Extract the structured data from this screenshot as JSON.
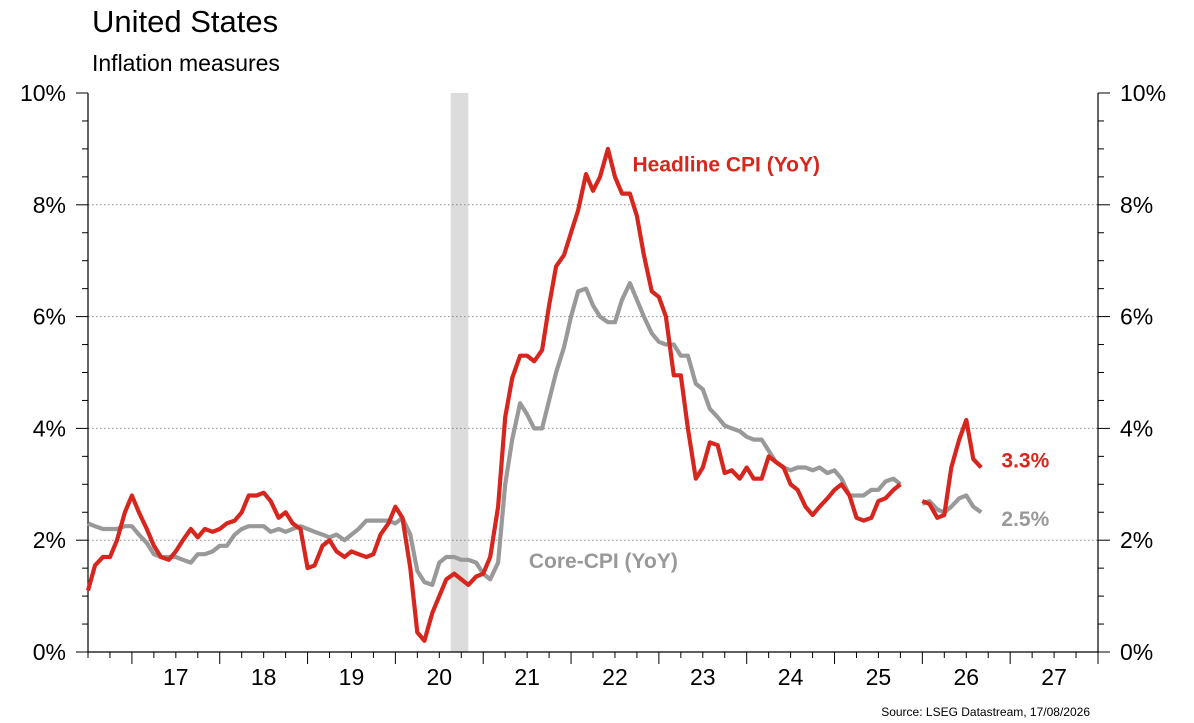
{
  "title": "United States",
  "subtitle": "Inflation measures",
  "source": "Source: LSEG Datastream, 17/08/2026",
  "chart_data": {
    "type": "line",
    "title": "United States",
    "subtitle": "Inflation measures",
    "xlabel": "",
    "ylabel": "",
    "y_ticks": [
      "0%",
      "2%",
      "4%",
      "6%",
      "8%",
      "10%"
    ],
    "ylim": [
      0,
      10
    ],
    "xlim": [
      2016.0,
      2027.5
    ],
    "x_ticks": [
      "17",
      "18",
      "19",
      "20",
      "21",
      "22",
      "23",
      "24",
      "25",
      "26",
      "27"
    ],
    "x_tick_values": [
      2017,
      2018,
      2019,
      2020,
      2021,
      2022,
      2023,
      2024,
      2025,
      2026,
      2027
    ],
    "grid": "horizontal dotted",
    "recession_shading": [
      2020.13,
      2020.33
    ],
    "annotations": [
      {
        "text": "Headline CPI (YoY)",
        "color": "#d7261e"
      },
      {
        "text": "Core-CPI (YoY)",
        "color": "#999999"
      },
      {
        "text": "3.3%",
        "color": "#d7261e"
      },
      {
        "text": "2.5%",
        "color": "#999999"
      }
    ],
    "series": [
      {
        "name": "Headline CPI (YoY)",
        "color": "#d7261e",
        "segments": [
          [
            [
              2016.0,
              1.1
            ],
            [
              2016.08,
              1.55
            ],
            [
              2016.17,
              1.7
            ],
            [
              2016.25,
              1.7
            ],
            [
              2016.33,
              2.0
            ],
            [
              2016.42,
              2.5
            ],
            [
              2016.5,
              2.8
            ],
            [
              2016.58,
              2.5
            ],
            [
              2016.67,
              2.2
            ],
            [
              2016.75,
              1.9
            ],
            [
              2016.83,
              1.7
            ],
            [
              2016.92,
              1.65
            ],
            [
              2017.0,
              1.8
            ],
            [
              2017.08,
              2.0
            ],
            [
              2017.17,
              2.2
            ],
            [
              2017.25,
              2.05
            ],
            [
              2017.33,
              2.2
            ],
            [
              2017.42,
              2.15
            ],
            [
              2017.5,
              2.2
            ],
            [
              2017.58,
              2.3
            ],
            [
              2017.67,
              2.35
            ],
            [
              2017.75,
              2.5
            ],
            [
              2017.83,
              2.8
            ],
            [
              2017.92,
              2.8
            ],
            [
              2018.0,
              2.85
            ],
            [
              2018.08,
              2.7
            ],
            [
              2018.17,
              2.4
            ],
            [
              2018.25,
              2.5
            ],
            [
              2018.33,
              2.3
            ],
            [
              2018.42,
              2.2
            ],
            [
              2018.5,
              1.5
            ],
            [
              2018.58,
              1.55
            ],
            [
              2018.67,
              1.9
            ],
            [
              2018.75,
              2.0
            ],
            [
              2018.83,
              1.8
            ],
            [
              2018.92,
              1.7
            ],
            [
              2019.0,
              1.8
            ],
            [
              2019.08,
              1.75
            ],
            [
              2019.17,
              1.7
            ],
            [
              2019.25,
              1.75
            ],
            [
              2019.33,
              2.1
            ],
            [
              2019.42,
              2.3
            ],
            [
              2019.5,
              2.6
            ],
            [
              2019.58,
              2.4
            ],
            [
              2019.67,
              1.5
            ],
            [
              2019.75,
              0.35
            ],
            [
              2019.83,
              0.2
            ],
            [
              2019.92,
              0.7
            ],
            [
              2020.0,
              1.0
            ],
            [
              2020.08,
              1.3
            ],
            [
              2020.17,
              1.4
            ],
            [
              2020.25,
              1.3
            ],
            [
              2020.33,
              1.2
            ],
            [
              2020.42,
              1.35
            ],
            [
              2020.5,
              1.4
            ],
            [
              2020.58,
              1.7
            ],
            [
              2020.67,
              2.6
            ],
            [
              2020.75,
              4.2
            ],
            [
              2020.83,
              4.9
            ],
            [
              2020.92,
              5.3
            ],
            [
              2021.0,
              5.3
            ],
            [
              2021.08,
              5.2
            ],
            [
              2021.17,
              5.4
            ],
            [
              2021.25,
              6.2
            ],
            [
              2021.33,
              6.9
            ],
            [
              2021.42,
              7.1
            ],
            [
              2021.5,
              7.5
            ],
            [
              2021.58,
              7.9
            ],
            [
              2021.67,
              8.55
            ],
            [
              2021.75,
              8.25
            ],
            [
              2021.83,
              8.5
            ],
            [
              2021.92,
              9.0
            ],
            [
              2022.0,
              8.5
            ],
            [
              2022.08,
              8.2
            ],
            [
              2022.17,
              8.2
            ],
            [
              2022.25,
              7.8
            ],
            [
              2022.33,
              7.1
            ],
            [
              2022.42,
              6.45
            ],
            [
              2022.5,
              6.35
            ],
            [
              2022.58,
              6.0
            ],
            [
              2022.67,
              4.95
            ],
            [
              2022.75,
              4.95
            ],
            [
              2022.83,
              4.0
            ],
            [
              2022.92,
              3.1
            ],
            [
              2023.0,
              3.3
            ],
            [
              2023.08,
              3.75
            ],
            [
              2023.17,
              3.7
            ],
            [
              2023.25,
              3.2
            ],
            [
              2023.33,
              3.25
            ],
            [
              2023.42,
              3.1
            ],
            [
              2023.5,
              3.3
            ],
            [
              2023.58,
              3.1
            ],
            [
              2023.67,
              3.1
            ],
            [
              2023.75,
              3.5
            ],
            [
              2023.83,
              3.4
            ],
            [
              2023.92,
              3.3
            ],
            [
              2024.0,
              3.0
            ],
            [
              2024.08,
              2.9
            ],
            [
              2024.17,
              2.6
            ],
            [
              2024.25,
              2.45
            ],
            [
              2024.33,
              2.6
            ],
            [
              2024.42,
              2.75
            ],
            [
              2024.5,
              2.9
            ],
            [
              2024.58,
              3.0
            ],
            [
              2024.67,
              2.8
            ],
            [
              2024.75,
              2.4
            ],
            [
              2024.83,
              2.35
            ],
            [
              2024.92,
              2.4
            ],
            [
              2025.0,
              2.7
            ],
            [
              2025.08,
              2.75
            ],
            [
              2025.17,
              2.9
            ],
            [
              2025.25,
              3.0
            ]
          ],
          [
            [
              2025.5,
              2.7
            ],
            [
              2025.58,
              2.65
            ],
            [
              2025.67,
              2.4
            ],
            [
              2025.75,
              2.45
            ],
            [
              2025.83,
              3.3
            ],
            [
              2025.92,
              3.8
            ],
            [
              2026.0,
              4.15
            ],
            [
              2026.08,
              3.45
            ],
            [
              2026.17,
              3.3
            ]
          ]
        ]
      },
      {
        "name": "Core-CPI (YoY)",
        "color": "#999999",
        "segments": [
          [
            [
              2016.0,
              2.3
            ],
            [
              2016.08,
              2.25
            ],
            [
              2016.17,
              2.2
            ],
            [
              2016.25,
              2.2
            ],
            [
              2016.33,
              2.2
            ],
            [
              2016.42,
              2.25
            ],
            [
              2016.5,
              2.25
            ],
            [
              2016.58,
              2.1
            ],
            [
              2016.67,
              1.95
            ],
            [
              2016.75,
              1.75
            ],
            [
              2016.83,
              1.7
            ],
            [
              2016.92,
              1.7
            ],
            [
              2017.0,
              1.7
            ],
            [
              2017.08,
              1.65
            ],
            [
              2017.17,
              1.6
            ],
            [
              2017.25,
              1.75
            ],
            [
              2017.33,
              1.75
            ],
            [
              2017.42,
              1.8
            ],
            [
              2017.5,
              1.9
            ],
            [
              2017.58,
              1.9
            ],
            [
              2017.67,
              2.1
            ],
            [
              2017.75,
              2.2
            ],
            [
              2017.83,
              2.25
            ],
            [
              2017.92,
              2.25
            ],
            [
              2018.0,
              2.25
            ],
            [
              2018.08,
              2.15
            ],
            [
              2018.17,
              2.2
            ],
            [
              2018.25,
              2.15
            ],
            [
              2018.33,
              2.2
            ],
            [
              2018.42,
              2.25
            ],
            [
              2018.5,
              2.2
            ],
            [
              2018.58,
              2.15
            ],
            [
              2018.67,
              2.1
            ],
            [
              2018.75,
              2.05
            ],
            [
              2018.83,
              2.1
            ],
            [
              2018.92,
              2.0
            ],
            [
              2019.0,
              2.1
            ],
            [
              2019.08,
              2.2
            ],
            [
              2019.17,
              2.35
            ],
            [
              2019.25,
              2.35
            ],
            [
              2019.33,
              2.35
            ],
            [
              2019.42,
              2.35
            ],
            [
              2019.5,
              2.3
            ],
            [
              2019.58,
              2.4
            ],
            [
              2019.67,
              2.1
            ],
            [
              2019.75,
              1.45
            ],
            [
              2019.83,
              1.25
            ],
            [
              2019.92,
              1.2
            ],
            [
              2020.0,
              1.6
            ],
            [
              2020.08,
              1.7
            ],
            [
              2020.17,
              1.7
            ],
            [
              2020.25,
              1.65
            ],
            [
              2020.33,
              1.65
            ],
            [
              2020.42,
              1.6
            ],
            [
              2020.5,
              1.4
            ],
            [
              2020.58,
              1.3
            ],
            [
              2020.67,
              1.6
            ],
            [
              2020.75,
              3.0
            ],
            [
              2020.83,
              3.8
            ],
            [
              2020.92,
              4.45
            ],
            [
              2021.0,
              4.25
            ],
            [
              2021.08,
              4.0
            ],
            [
              2021.17,
              4.0
            ],
            [
              2021.25,
              4.5
            ],
            [
              2021.33,
              5.0
            ],
            [
              2021.42,
              5.45
            ],
            [
              2021.5,
              6.0
            ],
            [
              2021.58,
              6.45
            ],
            [
              2021.67,
              6.5
            ],
            [
              2021.75,
              6.2
            ],
            [
              2021.83,
              6.0
            ],
            [
              2021.92,
              5.9
            ],
            [
              2022.0,
              5.9
            ],
            [
              2022.08,
              6.3
            ],
            [
              2022.17,
              6.6
            ],
            [
              2022.25,
              6.3
            ],
            [
              2022.33,
              6.0
            ],
            [
              2022.42,
              5.7
            ],
            [
              2022.5,
              5.55
            ],
            [
              2022.58,
              5.5
            ],
            [
              2022.67,
              5.5
            ],
            [
              2022.75,
              5.3
            ],
            [
              2022.83,
              5.3
            ],
            [
              2022.92,
              4.8
            ],
            [
              2023.0,
              4.7
            ],
            [
              2023.08,
              4.35
            ],
            [
              2023.17,
              4.2
            ],
            [
              2023.25,
              4.05
            ],
            [
              2023.33,
              4.0
            ],
            [
              2023.42,
              3.95
            ],
            [
              2023.5,
              3.85
            ],
            [
              2023.58,
              3.8
            ],
            [
              2023.67,
              3.8
            ],
            [
              2023.75,
              3.6
            ],
            [
              2023.83,
              3.4
            ],
            [
              2023.92,
              3.3
            ],
            [
              2024.0,
              3.25
            ],
            [
              2024.08,
              3.3
            ],
            [
              2024.17,
              3.3
            ],
            [
              2024.25,
              3.25
            ],
            [
              2024.33,
              3.3
            ],
            [
              2024.42,
              3.2
            ],
            [
              2024.5,
              3.25
            ],
            [
              2024.58,
              3.1
            ],
            [
              2024.67,
              2.8
            ],
            [
              2024.75,
              2.8
            ],
            [
              2024.83,
              2.8
            ],
            [
              2024.92,
              2.9
            ],
            [
              2025.0,
              2.9
            ],
            [
              2025.08,
              3.05
            ],
            [
              2025.17,
              3.1
            ],
            [
              2025.25,
              3.0
            ]
          ],
          [
            [
              2025.5,
              2.65
            ],
            [
              2025.58,
              2.7
            ],
            [
              2025.67,
              2.55
            ],
            [
              2025.75,
              2.5
            ],
            [
              2025.83,
              2.6
            ],
            [
              2025.92,
              2.75
            ],
            [
              2026.0,
              2.8
            ],
            [
              2026.08,
              2.6
            ],
            [
              2026.17,
              2.5
            ]
          ]
        ]
      }
    ]
  }
}
